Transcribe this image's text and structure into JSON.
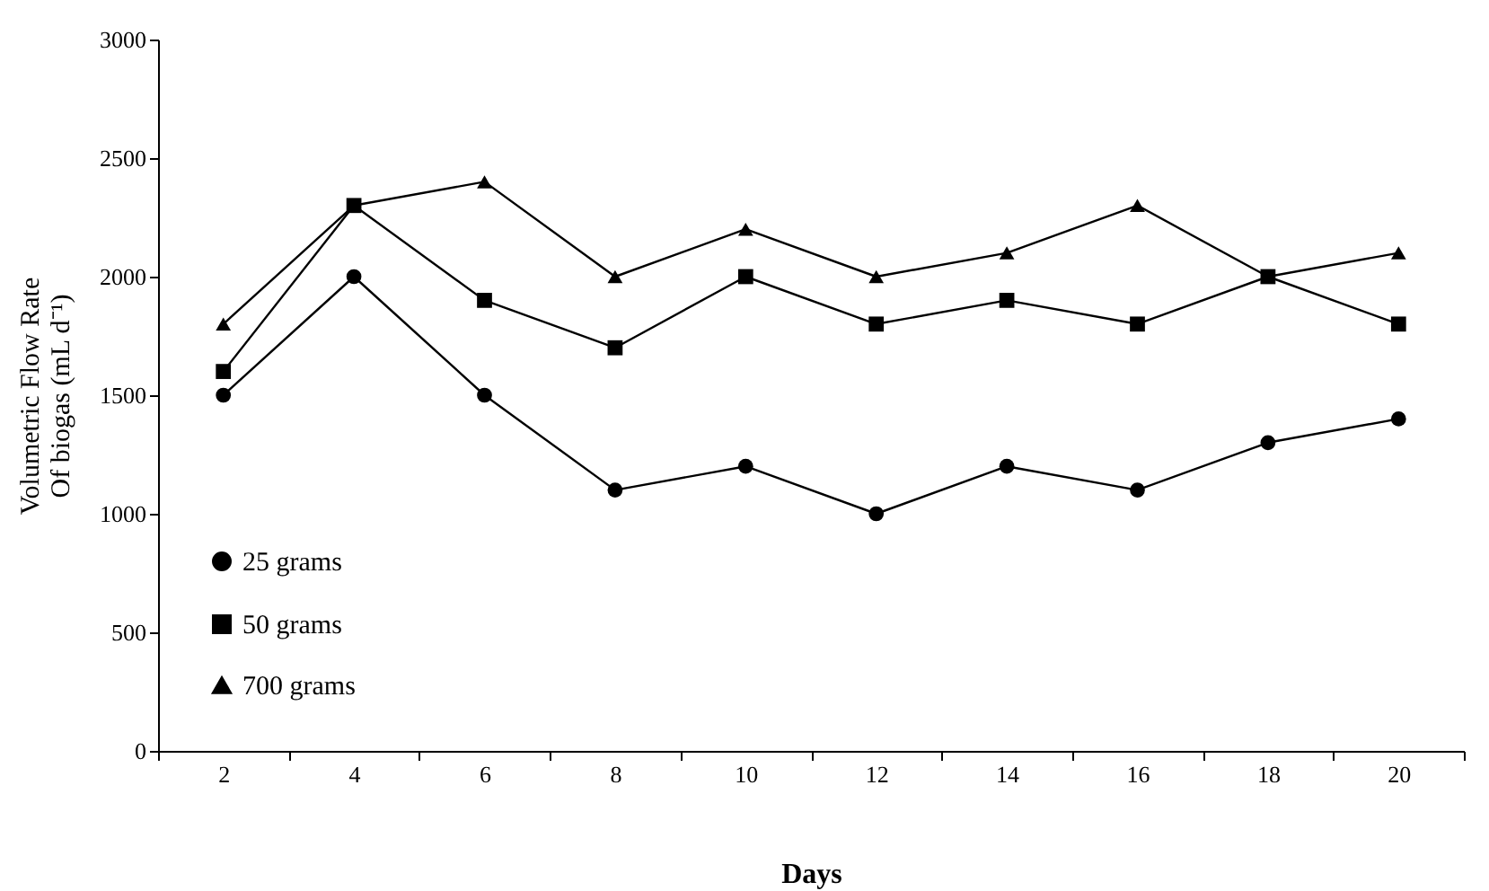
{
  "chart_data": {
    "type": "line",
    "xlabel": "Days",
    "ylabel": "Volumetric Flow Rate Of biogas (mL d⁻¹)",
    "categories": [
      "2",
      "4",
      "6",
      "8",
      "10",
      "12",
      "14",
      "16",
      "18",
      "20"
    ],
    "series": [
      {
        "name": "25 grams",
        "color": "#000000",
        "marker": "circle",
        "values": [
          1500,
          2000,
          1500,
          1100,
          1200,
          1000,
          1200,
          1100,
          1300,
          1400
        ]
      },
      {
        "name": "50 grams",
        "color": "#000000",
        "marker": "square",
        "values": [
          1600,
          2300,
          1900,
          1700,
          2000,
          1800,
          1900,
          1800,
          2000,
          1800
        ]
      },
      {
        "name": "700 grams",
        "color": "#000000",
        "marker": "triangle",
        "values": [
          1800,
          2300,
          2400,
          2000,
          2200,
          2000,
          2100,
          2300,
          2000,
          2100
        ]
      }
    ],
    "ylim": [
      0,
      3000
    ],
    "yticks": [
      0,
      500,
      1000,
      1500,
      2000,
      2500,
      3000
    ],
    "grid": false,
    "legend": "bottom left",
    "line_style": "solid"
  }
}
